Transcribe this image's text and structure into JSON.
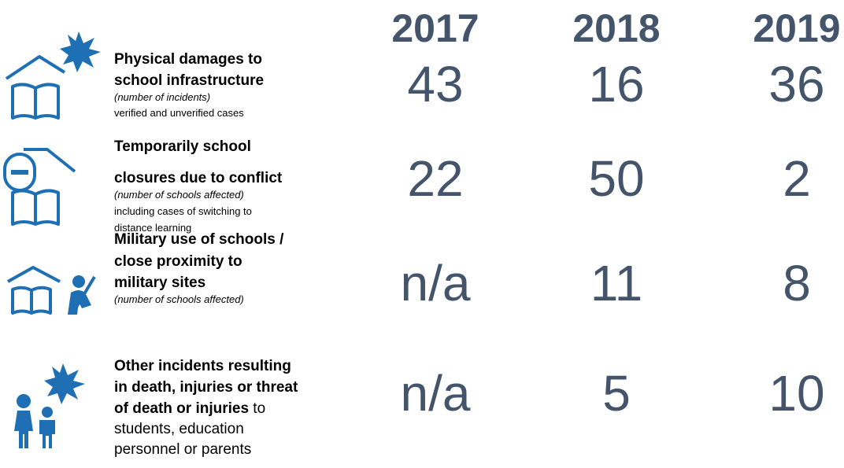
{
  "years": [
    "2017",
    "2018",
    "2019"
  ],
  "rows": [
    {
      "lines": [
        [
          {
            "text": "Physical damages to",
            "style": "bold"
          }
        ],
        [
          {
            "text": "school infrastructure",
            "style": "bold"
          }
        ],
        [
          {
            "text": "(number of incidents)",
            "style": "italic"
          }
        ],
        [
          {
            "text": "verified and unverified cases",
            "style": "regular"
          }
        ]
      ],
      "values": [
        43,
        16,
        36
      ]
    },
    {
      "lines": [
        [
          {
            "text": "Temporarily school",
            "style": "bold"
          }
        ],
        [
          {
            "text": "closures due to conflict",
            "style": "bold"
          }
        ],
        [
          {
            "text": "(number of schools affected)",
            "style": "italic"
          }
        ],
        [
          {
            "text": "including cases of switching to",
            "style": "regular"
          }
        ],
        [
          {
            "text": "distance learning",
            "style": "regular"
          }
        ]
      ],
      "values": [
        22,
        50,
        2
      ]
    },
    {
      "lines": [
        [
          {
            "text": "Military use of schools /",
            "style": "bold"
          }
        ],
        [
          {
            "text": "close proximity to",
            "style": "bold"
          }
        ],
        [
          {
            "text": "military sites",
            "style": "bold"
          }
        ],
        [
          {
            "text": "(number of schools affected)",
            "style": "italic"
          }
        ]
      ],
      "values": [
        "n/a",
        11,
        8
      ]
    },
    {
      "lines": [
        [
          {
            "text": "Other incidents resulting",
            "style": "bold"
          }
        ],
        [
          {
            "text": "in death, injuries or threat",
            "style": "bold"
          }
        ],
        [
          {
            "text": "of death or injuries",
            "style": "bold"
          },
          {
            "text": " to",
            "style": "regular-lg"
          }
        ],
        [
          {
            "text": "students, education",
            "style": "regular-lg"
          }
        ],
        [
          {
            "text": "personnel or parents",
            "style": "regular-lg"
          }
        ]
      ],
      "values": [
        "n/a",
        5,
        10
      ]
    }
  ]
}
